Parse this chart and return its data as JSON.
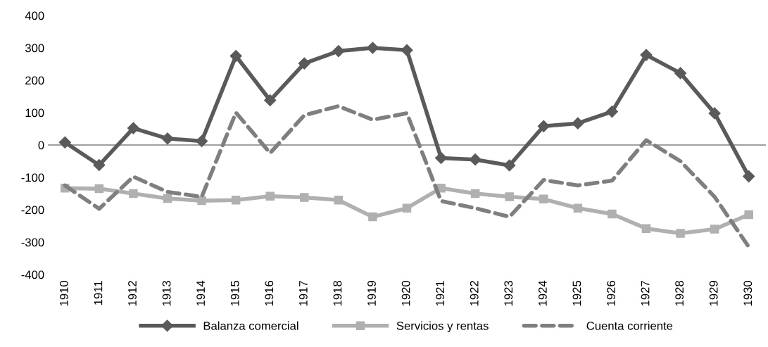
{
  "chart_data": {
    "type": "line",
    "categories": [
      "1910",
      "1911",
      "1912",
      "1913",
      "1914",
      "1915",
      "1916",
      "1917",
      "1918",
      "1919",
      "1920",
      "1921",
      "1922",
      "1923",
      "1924",
      "1925",
      "1926",
      "1927",
      "1928",
      "1929",
      "1930"
    ],
    "series": [
      {
        "name": "Balanza comercial",
        "color": "#5a5a5a",
        "marker": "diamond",
        "line_style": "solid",
        "values": [
          8,
          -62,
          52,
          20,
          12,
          275,
          138,
          252,
          290,
          300,
          293,
          -40,
          -45,
          -63,
          58,
          67,
          103,
          278,
          222,
          98,
          -97
        ]
      },
      {
        "name": "Servicios y rentas",
        "color": "#b0b0b0",
        "marker": "square",
        "line_style": "solid",
        "values": [
          -133,
          -135,
          -150,
          -165,
          -172,
          -170,
          -158,
          -162,
          -170,
          -222,
          -195,
          -133,
          -150,
          -160,
          -167,
          -195,
          -213,
          -258,
          -273,
          -260,
          -215
        ]
      },
      {
        "name": "Cuenta corriente",
        "color": "#7f7f7f",
        "marker": "none",
        "line_style": "dashed",
        "values": [
          -125,
          -197,
          -98,
          -145,
          -160,
          100,
          -25,
          92,
          120,
          78,
          98,
          -173,
          -195,
          -222,
          -108,
          -125,
          -110,
          15,
          -50,
          -160,
          -315
        ]
      }
    ],
    "ylim": [
      -400,
      400
    ],
    "yticks": [
      -400,
      -300,
      -200,
      -100,
      0,
      100,
      200,
      300,
      400
    ],
    "ref_lines": [
      {
        "axis": "y",
        "value": 0,
        "color": "#808080",
        "line_style": "solid"
      }
    ],
    "grid": false,
    "legend": "bottom"
  }
}
